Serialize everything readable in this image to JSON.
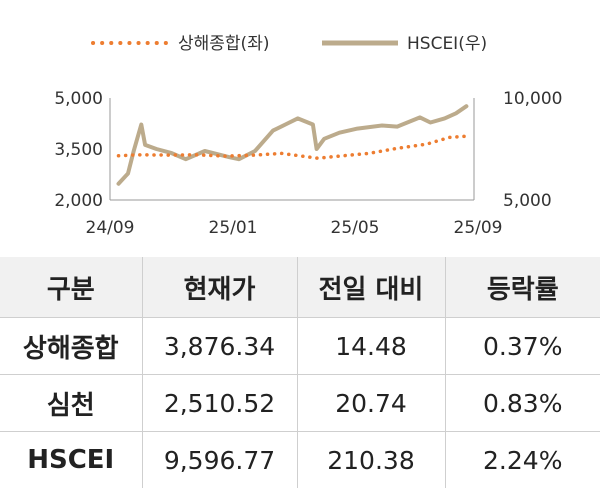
{
  "chart_data": {
    "type": "line",
    "legend_position": "top",
    "series": [
      {
        "name": "상해종합(좌)",
        "axis": "left",
        "color": "#ed7d31",
        "style": "dotted",
        "points": [
          [
            "2024-09-10",
            3300
          ],
          [
            "2024-10-01",
            3330
          ],
          [
            "2024-11-01",
            3320
          ],
          [
            "2024-12-01",
            3330
          ],
          [
            "2025-01-01",
            3290
          ],
          [
            "2025-02-01",
            3320
          ],
          [
            "2025-03-01",
            3370
          ],
          [
            "2025-04-08",
            3230
          ],
          [
            "2025-05-01",
            3290
          ],
          [
            "2025-06-01",
            3370
          ],
          [
            "2025-07-01",
            3520
          ],
          [
            "2025-08-01",
            3640
          ],
          [
            "2025-08-25",
            3840
          ],
          [
            "2025-09-12",
            3876
          ]
        ]
      },
      {
        "name": "HSCEI(우)",
        "axis": "right",
        "color": "#bcab8c",
        "style": "solid",
        "points": [
          [
            "2024-09-10",
            5800
          ],
          [
            "2024-09-20",
            6300
          ],
          [
            "2024-09-26",
            7400
          ],
          [
            "2024-10-04",
            8700
          ],
          [
            "2024-10-08",
            7700
          ],
          [
            "2024-10-20",
            7500
          ],
          [
            "2024-11-05",
            7300
          ],
          [
            "2024-11-20",
            7000
          ],
          [
            "2024-12-10",
            7400
          ],
          [
            "2025-01-05",
            7100
          ],
          [
            "2025-01-15",
            7000
          ],
          [
            "2025-02-01",
            7400
          ],
          [
            "2025-02-20",
            8400
          ],
          [
            "2025-03-05",
            8700
          ],
          [
            "2025-03-18",
            9000
          ],
          [
            "2025-04-03",
            8700
          ],
          [
            "2025-04-07",
            7500
          ],
          [
            "2025-04-15",
            8000
          ],
          [
            "2025-05-01",
            8300
          ],
          [
            "2025-05-20",
            8500
          ],
          [
            "2025-06-15",
            8650
          ],
          [
            "2025-07-01",
            8600
          ],
          [
            "2025-07-25",
            9050
          ],
          [
            "2025-08-05",
            8800
          ],
          [
            "2025-08-20",
            9000
          ],
          [
            "2025-09-01",
            9250
          ],
          [
            "2025-09-12",
            9597
          ]
        ]
      }
    ],
    "x_range": [
      "2024-09-01",
      "2025-09-20"
    ],
    "x_ticks": [
      {
        "label": "24/09",
        "date": "2024-09-01"
      },
      {
        "label": "25/01",
        "date": "2025-01-01"
      },
      {
        "label": "25/05",
        "date": "2025-05-01"
      },
      {
        "label": "25/09",
        "date": "2025-09-01"
      }
    ],
    "y_left": {
      "range": [
        2000,
        5000
      ],
      "ticks": [
        "2,000",
        "3,500",
        "5,000"
      ],
      "tick_values": [
        2000,
        3500,
        5000
      ]
    },
    "y_right": {
      "range": [
        5000,
        10000
      ],
      "ticks": [
        "5,000",
        "10,000"
      ],
      "tick_values": [
        5000,
        10000
      ]
    },
    "grid": false
  },
  "table": {
    "headers": [
      "구분",
      "현재가",
      "전일 대비",
      "등락률"
    ],
    "rows": [
      [
        "상해종합",
        "3,876.34",
        "14.48",
        "0.37%"
      ],
      [
        "심천",
        "2,510.52",
        "20.74",
        "0.83%"
      ],
      [
        "HSCEI",
        "9,596.77",
        "210.38",
        "2.24%"
      ]
    ]
  }
}
